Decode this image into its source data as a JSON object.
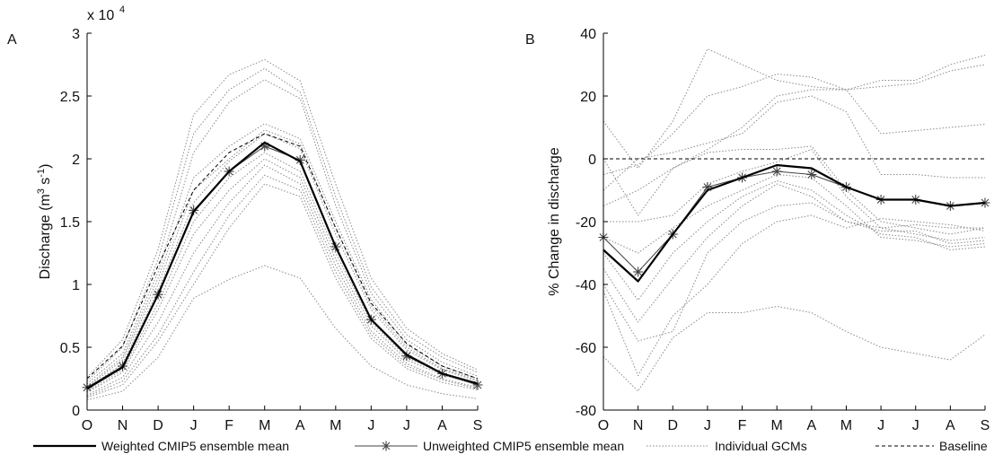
{
  "panel_a_label": "A",
  "panel_b_label": "B",
  "multiplier_label": "x 10",
  "multiplier_exponent": "4",
  "legend": [
    {
      "label": "Weighted CMIP5 ensemble mean",
      "style": "weighted"
    },
    {
      "label": "Unweighted CMIP5 ensemble mean",
      "style": "unweighted"
    },
    {
      "label": "Individual GCMs",
      "style": "gcm"
    },
    {
      "label": "Baseline",
      "style": "baseline"
    }
  ],
  "colors": {
    "weighted": "#000000",
    "unweighted": "#444444",
    "gcm": "#8a8a8a",
    "baseline": "#000000"
  },
  "chart_data": [
    {
      "type": "line",
      "panel": "A",
      "xlabel": "",
      "ylabel": "Discharge (m3 s-1)",
      "ylabel_parts": [
        "Discharge (m",
        "3",
        " s",
        "-1",
        ")"
      ],
      "categories": [
        "O",
        "N",
        "D",
        "J",
        "F",
        "M",
        "A",
        "M",
        "J",
        "J",
        "A",
        "S"
      ],
      "ylim": [
        0,
        30000
      ],
      "yticks": [
        0,
        5000,
        10000,
        15000,
        20000,
        25000,
        30000
      ],
      "ytick_labels": [
        "0",
        "0.5",
        "1",
        "1.5",
        "2",
        "2.5",
        "3"
      ],
      "series": [
        {
          "style": "weighted",
          "values": [
            1700,
            3400,
            9200,
            15800,
            19000,
            21300,
            19800,
            13000,
            7200,
            4400,
            2900,
            2100
          ]
        },
        {
          "style": "unweighted",
          "values": [
            1800,
            3500,
            9200,
            15900,
            19000,
            21000,
            19900,
            13000,
            7200,
            4300,
            2900,
            2000
          ]
        },
        {
          "style": "baseline",
          "values": [
            2500,
            5100,
            11500,
            17500,
            20500,
            22000,
            21000,
            14500,
            8500,
            5300,
            3500,
            2500
          ]
        },
        {
          "style": "gcm",
          "values": [
            2600,
            5600,
            12800,
            23500,
            26700,
            27900,
            26200,
            18000,
            10500,
            6500,
            4500,
            3200
          ]
        },
        {
          "style": "gcm",
          "values": [
            2300,
            5000,
            12000,
            22000,
            25500,
            27200,
            25300,
            17000,
            9800,
            6000,
            4200,
            3000
          ]
        },
        {
          "style": "gcm",
          "values": [
            2100,
            4500,
            11000,
            20500,
            24500,
            26300,
            24800,
            16300,
            9300,
            5600,
            3800,
            2700
          ]
        },
        {
          "style": "gcm",
          "values": [
            1900,
            4200,
            10500,
            18500,
            21000,
            22800,
            21600,
            15000,
            8800,
            5200,
            3500,
            2500
          ]
        },
        {
          "style": "gcm",
          "values": [
            1800,
            4000,
            10000,
            17500,
            20000,
            22300,
            21200,
            14500,
            8300,
            5000,
            3300,
            2400
          ]
        },
        {
          "style": "gcm",
          "values": [
            1700,
            3700,
            9500,
            16500,
            19800,
            22000,
            20800,
            14000,
            8000,
            4800,
            3200,
            2300
          ]
        },
        {
          "style": "gcm",
          "values": [
            1500,
            3200,
            8500,
            15000,
            18500,
            20500,
            19000,
            12500,
            7000,
            4200,
            2900,
            2100
          ]
        },
        {
          "style": "gcm",
          "values": [
            1400,
            3000,
            8000,
            14000,
            17500,
            20000,
            18500,
            12000,
            6700,
            4000,
            2800,
            2000
          ]
        },
        {
          "style": "gcm",
          "values": [
            1200,
            2600,
            7000,
            12500,
            16500,
            19500,
            18000,
            11500,
            6300,
            3700,
            2500,
            1800
          ]
        },
        {
          "style": "gcm",
          "values": [
            1100,
            2300,
            6000,
            11000,
            15500,
            18700,
            17500,
            11000,
            6000,
            3500,
            2400,
            1700
          ]
        },
        {
          "style": "gcm",
          "values": [
            1000,
            2000,
            5500,
            10000,
            14500,
            18000,
            17000,
            10500,
            5700,
            3300,
            2200,
            1600
          ]
        },
        {
          "style": "gcm",
          "values": [
            800,
            1500,
            4200,
            8900,
            10400,
            11500,
            10500,
            6500,
            3500,
            2000,
            1300,
            900
          ]
        }
      ]
    },
    {
      "type": "line",
      "panel": "B",
      "xlabel": "",
      "ylabel": "% Change in discharge",
      "categories": [
        "O",
        "N",
        "D",
        "J",
        "F",
        "M",
        "A",
        "M",
        "J",
        "J",
        "A",
        "S"
      ],
      "ylim": [
        -80,
        40
      ],
      "yticks": [
        -80,
        -60,
        -40,
        -20,
        0,
        20,
        40
      ],
      "ytick_labels": [
        "-80",
        "-60",
        "-40",
        "-20",
        "0",
        "20",
        "40"
      ],
      "series": [
        {
          "style": "baseline",
          "values": [
            0,
            0,
            0,
            0,
            0,
            0,
            0,
            0,
            0,
            0,
            0,
            0
          ]
        },
        {
          "style": "weighted",
          "values": [
            -29,
            -39,
            -24,
            -10,
            -6,
            -2,
            -3,
            -9,
            -13,
            -13,
            -15,
            -14
          ]
        },
        {
          "style": "unweighted",
          "values": [
            -25,
            -36,
            -24,
            -9,
            -6,
            -4,
            -5,
            -9,
            -13,
            -13,
            -15,
            -14
          ]
        },
        {
          "style": "gcm",
          "values": [
            12,
            -3,
            12,
            35,
            30,
            25,
            23,
            22,
            25,
            25,
            30,
            33
          ]
        },
        {
          "style": "gcm",
          "values": [
            -5,
            -2,
            8,
            20,
            23,
            27,
            26,
            22,
            23,
            24,
            28,
            30
          ]
        },
        {
          "style": "gcm",
          "values": [
            0,
            -18,
            -3,
            3,
            10,
            20,
            22,
            22,
            8,
            9,
            10,
            11
          ]
        },
        {
          "style": "gcm",
          "values": [
            -10,
            0,
            2,
            5,
            8,
            18,
            20,
            15,
            -5,
            -5,
            -6,
            -6
          ]
        },
        {
          "style": "gcm",
          "values": [
            -15,
            -10,
            -3,
            2,
            3,
            3,
            4,
            -10,
            -20,
            -22,
            -24,
            -22
          ]
        },
        {
          "style": "gcm",
          "values": [
            -20,
            -20,
            -18,
            -8,
            -4,
            -1,
            3,
            -12,
            -22,
            -24,
            -26,
            -25
          ]
        },
        {
          "style": "gcm",
          "values": [
            -25,
            -30,
            -22,
            -15,
            -10,
            -5,
            -6,
            -15,
            -25,
            -26,
            -28,
            -27
          ]
        },
        {
          "style": "gcm",
          "values": [
            -30,
            -45,
            -30,
            -20,
            -12,
            -7,
            -10,
            -18,
            -24,
            -25,
            -29,
            -28
          ]
        },
        {
          "style": "gcm",
          "values": [
            -35,
            -52,
            -38,
            -25,
            -15,
            -8,
            -12,
            -20,
            -23,
            -23,
            -27,
            -26
          ]
        },
        {
          "style": "gcm",
          "values": [
            -40,
            -58,
            -55,
            -30,
            -20,
            -15,
            -14,
            -20,
            -22,
            -21,
            -22,
            -22
          ]
        },
        {
          "style": "gcm",
          "values": [
            -63,
            -74,
            -57,
            -49,
            -49,
            -47,
            -49,
            -55,
            -60,
            -62,
            -64,
            -56
          ]
        },
        {
          "style": "gcm",
          "values": [
            -42,
            -69,
            -50,
            -40,
            -27,
            -20,
            -18,
            -22,
            -19,
            -20,
            -21,
            -23
          ]
        }
      ]
    }
  ]
}
